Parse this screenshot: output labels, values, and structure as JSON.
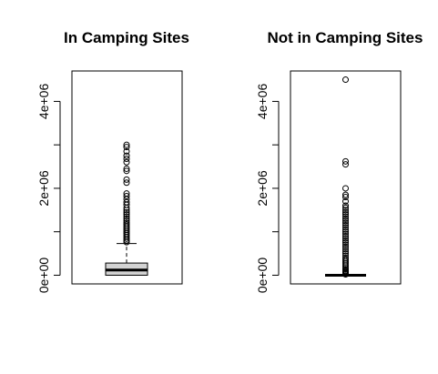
{
  "chart_data": [
    {
      "type": "boxplot",
      "title": "In Camping Sites",
      "xlabel": "",
      "ylabel": "",
      "ylim": [
        -200000,
        4700000
      ],
      "y_ticks": [
        0,
        2000000,
        4000000
      ],
      "y_tick_labels": [
        "0e+00",
        "2e+06",
        "4e+06"
      ],
      "box": {
        "whisker_low": 0,
        "q1": 0,
        "median": 120000,
        "q3": 280000,
        "whisker_high": 730000
      },
      "outliers": [
        760000,
        800000,
        840000,
        880000,
        920000,
        960000,
        1000000,
        1040000,
        1080000,
        1120000,
        1160000,
        1200000,
        1250000,
        1300000,
        1350000,
        1400000,
        1450000,
        1500000,
        1550000,
        1620000,
        1680000,
        1750000,
        1820000,
        1880000,
        2130000,
        2200000,
        2400000,
        2450000,
        2600000,
        2680000,
        2750000,
        2850000,
        2950000,
        3000000
      ],
      "box_fill": "#d3d3d3"
    },
    {
      "type": "boxplot",
      "title": "Not in Camping Sites",
      "xlabel": "",
      "ylabel": "",
      "ylim": [
        -200000,
        4700000
      ],
      "y_ticks": [
        0,
        2000000,
        4000000
      ],
      "y_tick_labels": [
        "0e+00",
        "2e+06",
        "4e+06"
      ],
      "box": {
        "whisker_low": 0,
        "q1": 0,
        "median": 0,
        "q3": 0,
        "whisker_high": 0
      },
      "outliers": [
        20000,
        40000,
        60000,
        80000,
        100000,
        130000,
        160000,
        200000,
        240000,
        280000,
        320000,
        360000,
        400000,
        450000,
        500000,
        550000,
        600000,
        650000,
        700000,
        750000,
        800000,
        850000,
        900000,
        950000,
        1000000,
        1050000,
        1100000,
        1150000,
        1200000,
        1250000,
        1300000,
        1350000,
        1400000,
        1450000,
        1500000,
        1550000,
        1600000,
        1700000,
        1800000,
        1850000,
        2000000,
        2550000,
        2620000,
        4500000
      ],
      "box_fill": "#d3d3d3"
    }
  ]
}
